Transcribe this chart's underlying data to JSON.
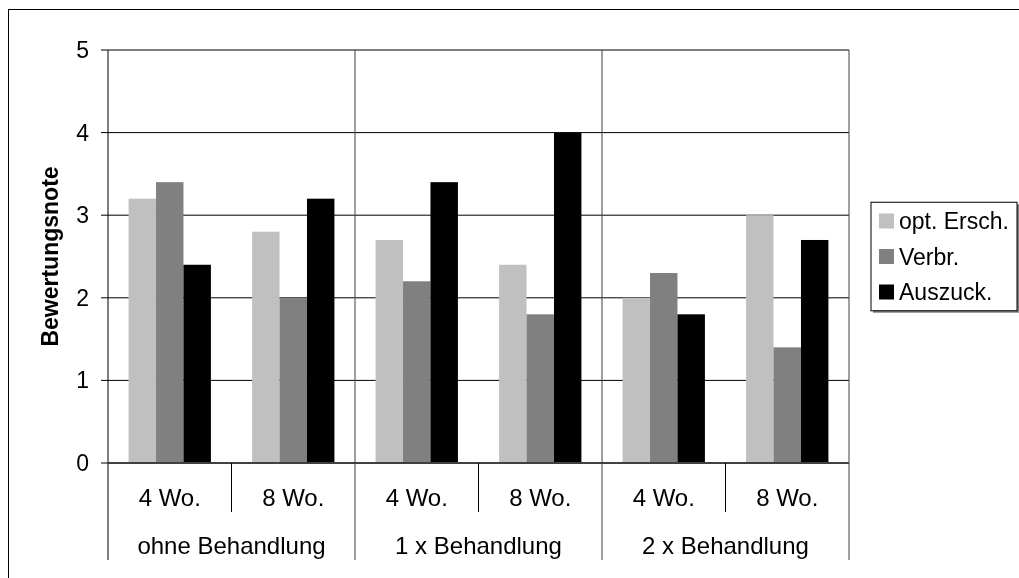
{
  "chart_data": {
    "type": "bar",
    "ylabel": "Bewertungsnote",
    "categories": [
      "4 Wo.",
      "8 Wo.",
      "4 Wo.",
      "8 Wo.",
      "4 Wo.",
      "8 Wo."
    ],
    "annotations": [
      "ohne Behandlung",
      "1 x Behandlung",
      "2 x Behandlung"
    ],
    "series": [
      {
        "name": "opt. Ersch.",
        "color": "#c0c0c0",
        "values": [
          3.2,
          2.8,
          2.7,
          2.4,
          2.0,
          3.0
        ]
      },
      {
        "name": "Verbr.",
        "color": "#808080",
        "values": [
          3.4,
          2.0,
          2.2,
          1.8,
          2.3,
          1.4
        ]
      },
      {
        "name": "Auszuck.",
        "color": "#000000",
        "values": [
          2.4,
          3.2,
          3.4,
          4.0,
          1.8,
          2.7
        ]
      }
    ],
    "ylim": [
      0,
      5
    ],
    "yticks": [
      0,
      1,
      2,
      3,
      4,
      5
    ],
    "grid": "y",
    "legend": "right"
  }
}
